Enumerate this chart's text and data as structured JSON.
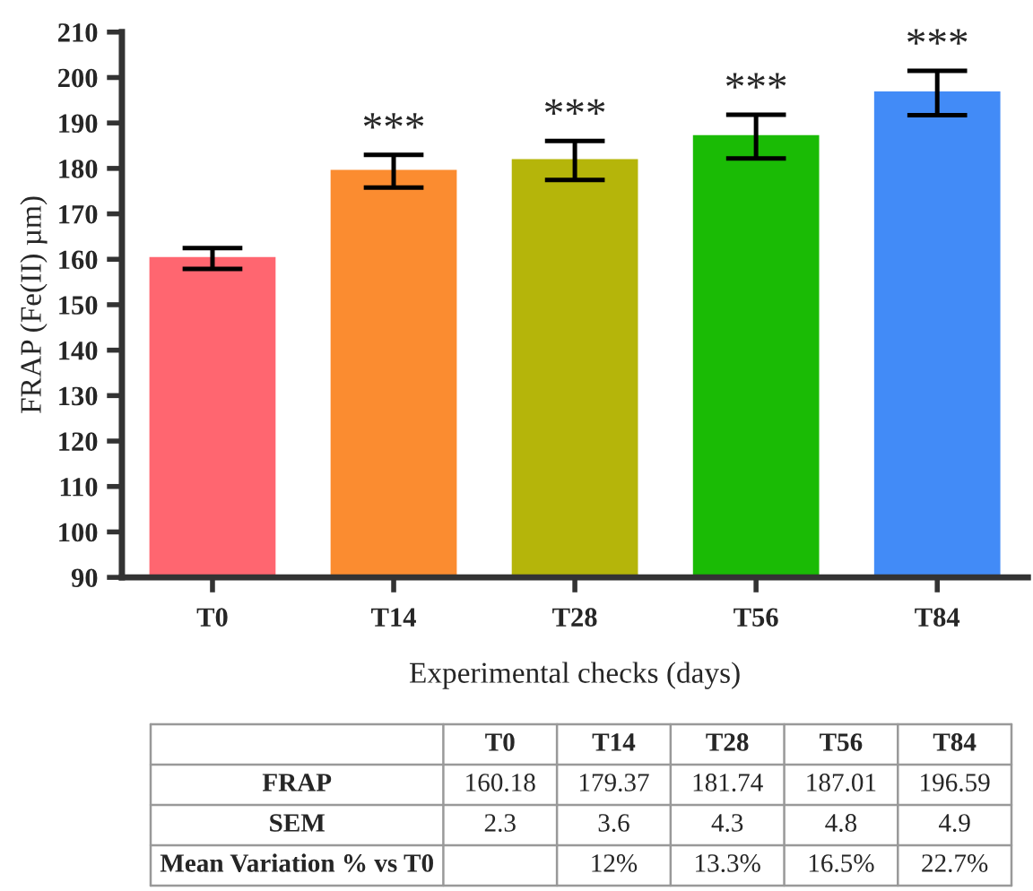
{
  "chart_data": [
    {
      "type": "bar",
      "xlabel": "Experimental checks (days)",
      "ylabel": "FRAP (Fe(II) µm)",
      "categories": [
        "T0",
        "T14",
        "T28",
        "T56",
        "T84"
      ],
      "values": [
        160.18,
        179.37,
        181.74,
        187.01,
        196.59
      ],
      "errors": [
        2.3,
        3.6,
        4.3,
        4.8,
        4.9
      ],
      "colors": [
        "#ff6670",
        "#fb8c30",
        "#b5b50a",
        "#1abb05",
        "#428bf7"
      ],
      "ylim": [
        90,
        210
      ],
      "yticks": [
        90,
        100,
        110,
        120,
        130,
        140,
        150,
        160,
        170,
        180,
        190,
        200,
        210
      ],
      "annotations": [
        {
          "text": "***",
          "x": "T14",
          "y": 182.97
        },
        {
          "text": "***",
          "x": "T28",
          "y": 186.04
        },
        {
          "text": "***",
          "x": "T56",
          "y": 191.81
        },
        {
          "text": "***",
          "x": "T84",
          "y": 201.49
        }
      ]
    },
    {
      "type": "other",
      "categories": [
        "T0",
        "T14",
        "T28",
        "T56",
        "T84"
      ],
      "y_categories": [
        "FRAP",
        "SEM",
        "Mean Variation % vs T0"
      ],
      "cell_labels": [
        [
          "160.18",
          "179.37",
          "181.74",
          "187.01",
          "196.59"
        ],
        [
          "2.3",
          "3.6",
          "4.3",
          "4.8",
          "4.9"
        ],
        [
          null,
          "12%",
          "13.3%",
          "16.5%",
          "22.7%"
        ]
      ]
    }
  ]
}
